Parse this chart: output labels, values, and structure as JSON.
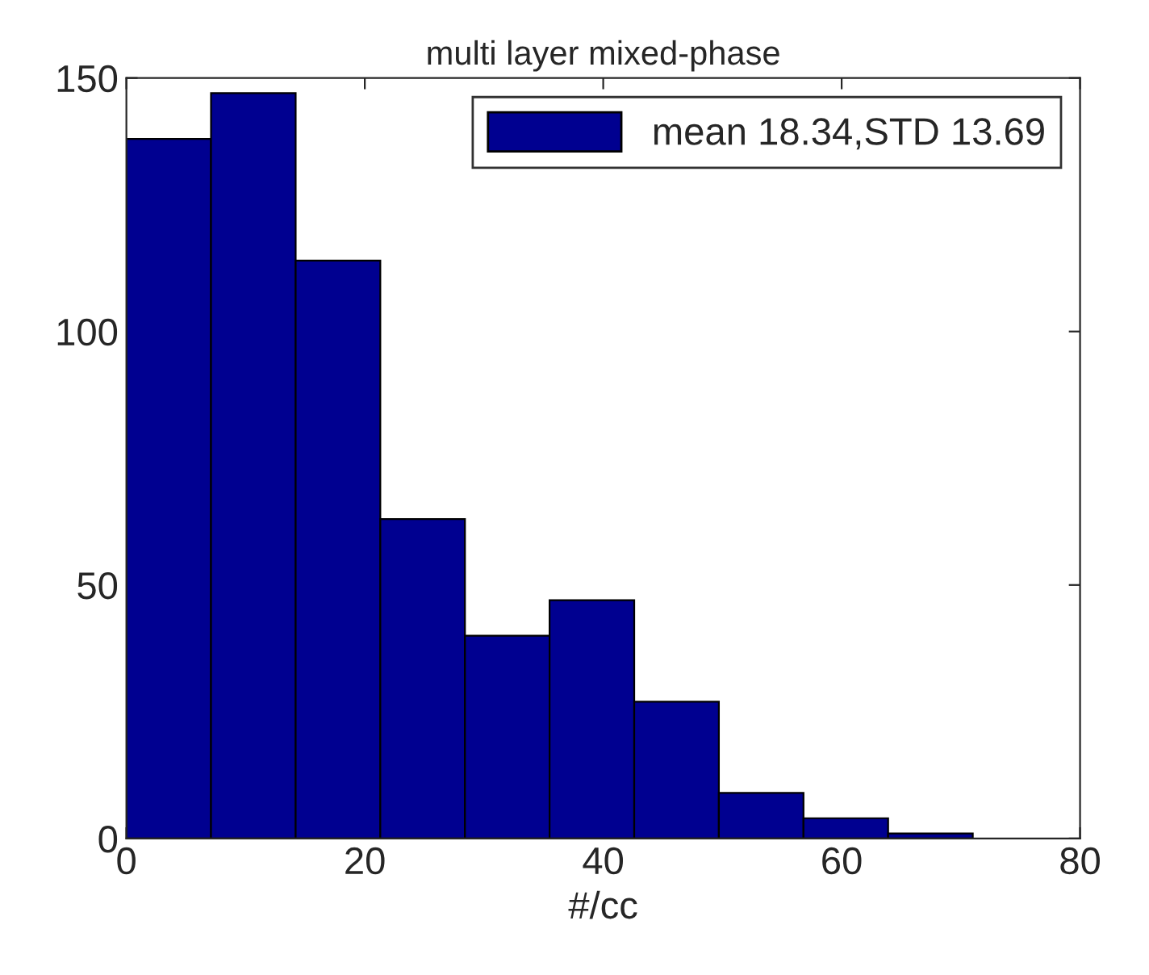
{
  "chart_data": {
    "type": "histogram",
    "title": "multi layer mixed-phase",
    "xlabel": "#/cc",
    "bins": [
      0,
      7.1,
      14.2,
      21.3,
      28.4,
      35.5,
      42.6,
      49.7,
      56.8,
      63.9,
      71.0
    ],
    "series": [
      {
        "name": "mean 18.34,STD 13.69",
        "color": "#000090",
        "values": [
          138,
          147,
          114,
          63,
          40,
          47,
          27,
          9,
          4,
          1
        ]
      }
    ],
    "xlim": [
      0,
      80
    ],
    "xticks": [
      0,
      20,
      40,
      60,
      80
    ],
    "ylim": [
      0,
      150
    ],
    "yticks": [
      0,
      50,
      100,
      150
    ],
    "legend": "top right",
    "grid": false
  }
}
